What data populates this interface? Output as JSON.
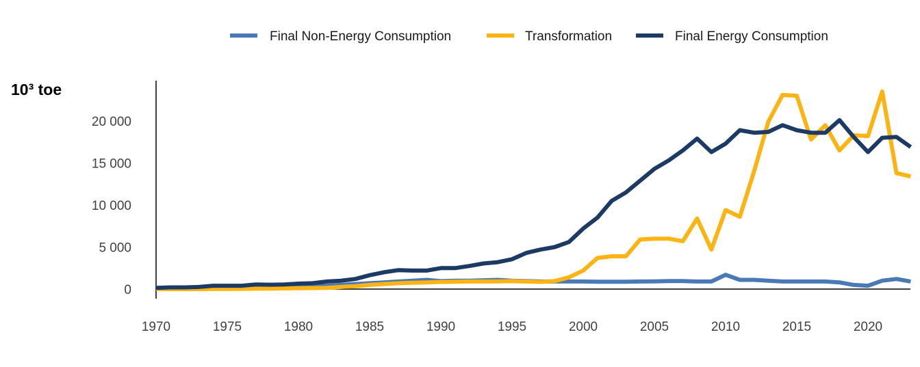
{
  "chart_data": {
    "type": "line",
    "title": "",
    "xlabel": "",
    "ylabel": "10³ toe",
    "xlim": [
      1970,
      2023
    ],
    "ylim": [
      0,
      24000
    ],
    "grid": false,
    "legend_position": "top",
    "x_ticks": [
      1970,
      1975,
      1980,
      1985,
      1990,
      1995,
      2000,
      2005,
      2010,
      2015,
      2020
    ],
    "x_tick_labels": [
      "1970",
      "1975",
      "1980",
      "1985",
      "1990",
      "1995",
      "2000",
      "2005",
      "2010",
      "2015",
      "2020"
    ],
    "y_ticks": [
      0,
      5000,
      10000,
      15000,
      20000
    ],
    "y_tick_labels": [
      "0",
      "5 000",
      "10 000",
      "15 000",
      "20 000"
    ],
    "x": [
      1970,
      1971,
      1972,
      1973,
      1974,
      1975,
      1976,
      1977,
      1978,
      1979,
      1980,
      1981,
      1982,
      1983,
      1984,
      1985,
      1986,
      1987,
      1988,
      1989,
      1990,
      1991,
      1992,
      1993,
      1994,
      1995,
      1996,
      1997,
      1998,
      1999,
      2000,
      2001,
      2002,
      2003,
      2004,
      2005,
      2006,
      2007,
      2008,
      2009,
      2010,
      2011,
      2012,
      2013,
      2014,
      2015,
      2016,
      2017,
      2018,
      2019,
      2020,
      2021,
      2022,
      2023
    ],
    "series": [
      {
        "name": "Final Non-Energy Consumption",
        "color": "#4a7ab5",
        "values": [
          50,
          60,
          70,
          80,
          100,
          150,
          200,
          250,
          280,
          300,
          320,
          350,
          400,
          500,
          600,
          700,
          800,
          900,
          1000,
          1100,
          950,
          1000,
          1000,
          1050,
          1100,
          1000,
          950,
          900,
          900,
          900,
          900,
          880,
          880,
          880,
          900,
          920,
          950,
          950,
          900,
          900,
          1700,
          1100,
          1100,
          1000,
          900,
          900,
          900,
          900,
          800,
          500,
          400,
          1000,
          1200,
          900
        ]
      },
      {
        "name": "Transformation",
        "color": "#fbb413",
        "values": [
          0,
          0,
          0,
          0,
          10,
          20,
          30,
          50,
          60,
          80,
          100,
          120,
          150,
          250,
          350,
          500,
          600,
          700,
          750,
          800,
          850,
          880,
          900,
          900,
          920,
          950,
          900,
          850,
          950,
          1400,
          2200,
          3700,
          3900,
          3900,
          5900,
          6000,
          6000,
          5700,
          8400,
          4700,
          9400,
          8600,
          14000,
          19900,
          23100,
          23000,
          17800,
          19500,
          16500,
          18300,
          18200,
          23500,
          13800,
          13400
        ]
      },
      {
        "name": "Final Energy Consumption",
        "color": "#1c3a63",
        "values": [
          150,
          200,
          200,
          250,
          400,
          400,
          400,
          550,
          520,
          550,
          650,
          700,
          900,
          1000,
          1200,
          1650,
          2000,
          2250,
          2200,
          2200,
          2500,
          2500,
          2750,
          3050,
          3200,
          3550,
          4300,
          4700,
          5000,
          5600,
          7200,
          8500,
          10500,
          11500,
          12900,
          14300,
          15300,
          16500,
          17900,
          16300,
          17300,
          18900,
          18600,
          18700,
          19500,
          18900,
          18600,
          18600,
          20100,
          18100,
          16300,
          18000,
          18100,
          16900
        ]
      }
    ]
  }
}
